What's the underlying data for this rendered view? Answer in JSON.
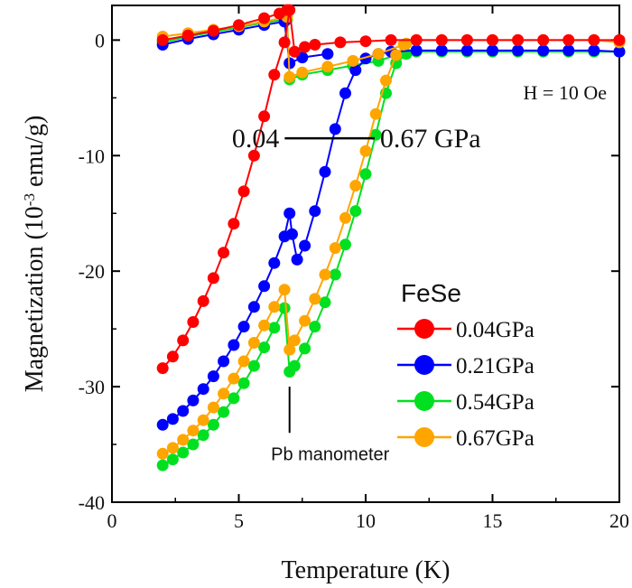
{
  "chart_data": {
    "type": "scatter",
    "title": "",
    "xlabel": "Temperature (K)",
    "ylabel_main": "Magnetization (10",
    "ylabel_sup": "-3",
    "ylabel_unit": " emu/g)",
    "xlim": [
      0,
      20
    ],
    "ylim": [
      -40,
      3
    ],
    "xticks": [
      0,
      5,
      10,
      15,
      20
    ],
    "xtick_labels": [
      "0",
      "5",
      "10",
      "15",
      "20"
    ],
    "yticks": [
      0,
      -10,
      -20,
      -30,
      -40
    ],
    "ytick_labels": [
      "0",
      "-10",
      "-20",
      "-30",
      "-40"
    ],
    "grid": false,
    "legend": {
      "title": "FeSe",
      "position": "lower-right"
    },
    "series": [
      {
        "name": "0.04GPa",
        "color": "#ff0000",
        "points": [
          [
            2,
            -28.4
          ],
          [
            2.4,
            -27.4
          ],
          [
            2.8,
            -26.0
          ],
          [
            3.2,
            -24.4
          ],
          [
            3.6,
            -22.6
          ],
          [
            4.0,
            -20.6
          ],
          [
            4.4,
            -18.4
          ],
          [
            4.8,
            -15.9
          ],
          [
            5.2,
            -13.1
          ],
          [
            5.6,
            -10.0
          ],
          [
            6.0,
            -6.6
          ],
          [
            6.4,
            -3.0
          ],
          [
            6.8,
            -0.2
          ],
          [
            7.0,
            2.6
          ],
          [
            7.2,
            -1.0
          ],
          [
            7.6,
            -0.6
          ],
          [
            8.0,
            -0.4
          ],
          [
            9.0,
            -0.2
          ],
          [
            10.0,
            -0.1
          ],
          [
            11.0,
            0.0
          ],
          [
            12.0,
            0.0
          ],
          [
            13.0,
            0.0
          ],
          [
            14.0,
            0.0
          ],
          [
            15.0,
            0.0
          ],
          [
            16.0,
            0.0
          ],
          [
            17.0,
            0.0
          ],
          [
            18.0,
            0.0
          ],
          [
            19.0,
            0.0
          ],
          [
            20.0,
            0.0
          ]
        ],
        "warming": [
          [
            2,
            0.0
          ],
          [
            3,
            0.4
          ],
          [
            4,
            0.8
          ],
          [
            5,
            1.3
          ],
          [
            6,
            1.9
          ],
          [
            6.6,
            2.3
          ],
          [
            6.9,
            2.6
          ]
        ]
      },
      {
        "name": "0.21GPa",
        "color": "#0000ff",
        "points": [
          [
            2,
            -33.3
          ],
          [
            2.4,
            -32.8
          ],
          [
            2.8,
            -32.1
          ],
          [
            3.2,
            -31.2
          ],
          [
            3.6,
            -30.2
          ],
          [
            4.0,
            -29.1
          ],
          [
            4.4,
            -27.8
          ],
          [
            4.8,
            -26.4
          ],
          [
            5.2,
            -24.8
          ],
          [
            5.6,
            -23.1
          ],
          [
            6.0,
            -21.3
          ],
          [
            6.4,
            -19.3
          ],
          [
            6.8,
            -17.0
          ],
          [
            7.0,
            -15.0
          ],
          [
            7.1,
            -16.8
          ],
          [
            7.3,
            -19.0
          ],
          [
            7.6,
            -17.8
          ],
          [
            8.0,
            -14.8
          ],
          [
            8.4,
            -11.4
          ],
          [
            8.8,
            -7.7
          ],
          [
            9.2,
            -4.6
          ],
          [
            9.6,
            -2.6
          ],
          [
            10.0,
            -1.6
          ],
          [
            10.5,
            -1.2
          ],
          [
            11.0,
            -1.0
          ],
          [
            12.0,
            -0.9
          ],
          [
            13.0,
            -0.9
          ],
          [
            14.0,
            -0.9
          ],
          [
            15.0,
            -0.9
          ],
          [
            16.0,
            -0.9
          ],
          [
            17.0,
            -0.9
          ],
          [
            18.0,
            -0.9
          ],
          [
            19.0,
            -0.9
          ],
          [
            20.0,
            -1.0
          ]
        ],
        "warming": [
          [
            2,
            -0.4
          ],
          [
            3,
            0.1
          ],
          [
            4,
            0.5
          ],
          [
            5,
            0.9
          ],
          [
            6,
            1.3
          ],
          [
            6.8,
            1.6
          ],
          [
            7.0,
            -2.0
          ],
          [
            7.5,
            -1.5
          ],
          [
            8.5,
            -1.2
          ]
        ]
      },
      {
        "name": "0.54GPa",
        "color": "#00e020",
        "points": [
          [
            2,
            -36.8
          ],
          [
            2.4,
            -36.3
          ],
          [
            2.8,
            -35.7
          ],
          [
            3.2,
            -35.0
          ],
          [
            3.6,
            -34.2
          ],
          [
            4.0,
            -33.3
          ],
          [
            4.4,
            -32.2
          ],
          [
            4.8,
            -31.0
          ],
          [
            5.2,
            -29.7
          ],
          [
            5.6,
            -28.2
          ],
          [
            6.0,
            -26.6
          ],
          [
            6.4,
            -24.9
          ],
          [
            6.8,
            -23.2
          ],
          [
            7.0,
            -28.7
          ],
          [
            7.2,
            -28.2
          ],
          [
            7.6,
            -26.7
          ],
          [
            8.0,
            -24.8
          ],
          [
            8.4,
            -22.7
          ],
          [
            8.8,
            -20.3
          ],
          [
            9.2,
            -17.7
          ],
          [
            9.6,
            -14.8
          ],
          [
            10.0,
            -11.6
          ],
          [
            10.4,
            -8.2
          ],
          [
            10.8,
            -4.6
          ],
          [
            11.2,
            -2.0
          ],
          [
            11.6,
            -1.2
          ],
          [
            12.0,
            -1.0
          ],
          [
            13.0,
            -1.0
          ],
          [
            14.0,
            -1.0
          ],
          [
            15.0,
            -1.0
          ],
          [
            16.0,
            -1.0
          ],
          [
            17.0,
            -1.0
          ],
          [
            18.0,
            -1.0
          ],
          [
            19.0,
            -1.0
          ],
          [
            20.0,
            -1.0
          ]
        ],
        "warming": [
          [
            2,
            -0.2
          ],
          [
            3,
            0.3
          ],
          [
            4,
            0.7
          ],
          [
            5,
            1.1
          ],
          [
            6,
            1.5
          ],
          [
            6.9,
            1.8
          ],
          [
            7.0,
            -3.4
          ],
          [
            7.5,
            -3.0
          ],
          [
            8.5,
            -2.6
          ],
          [
            9.5,
            -2.2
          ],
          [
            10.5,
            -1.8
          ],
          [
            11.2,
            -1.3
          ]
        ]
      },
      {
        "name": "0.67GPa",
        "color": "#ffa500",
        "points": [
          [
            2,
            -35.8
          ],
          [
            2.4,
            -35.3
          ],
          [
            2.8,
            -34.6
          ],
          [
            3.2,
            -33.8
          ],
          [
            3.6,
            -32.9
          ],
          [
            4.0,
            -31.8
          ],
          [
            4.4,
            -30.6
          ],
          [
            4.8,
            -29.3
          ],
          [
            5.2,
            -27.8
          ],
          [
            5.6,
            -26.2
          ],
          [
            6.0,
            -24.7
          ],
          [
            6.4,
            -23.1
          ],
          [
            6.8,
            -21.6
          ],
          [
            7.0,
            -26.8
          ],
          [
            7.2,
            -26.0
          ],
          [
            7.6,
            -24.3
          ],
          [
            8.0,
            -22.4
          ],
          [
            8.4,
            -20.3
          ],
          [
            8.8,
            -18.0
          ],
          [
            9.2,
            -15.4
          ],
          [
            9.6,
            -12.6
          ],
          [
            10.0,
            -9.6
          ],
          [
            10.4,
            -6.4
          ],
          [
            10.8,
            -3.5
          ],
          [
            11.2,
            -1.3
          ],
          [
            11.6,
            -0.3
          ],
          [
            12.0,
            0.0
          ],
          [
            13.0,
            0.0
          ],
          [
            14.0,
            0.0
          ],
          [
            15.0,
            0.0
          ],
          [
            16.0,
            0.0
          ],
          [
            17.0,
            0.0
          ],
          [
            18.0,
            0.0
          ],
          [
            19.0,
            0.0
          ],
          [
            20.0,
            -0.2
          ]
        ],
        "warming": [
          [
            2,
            0.3
          ],
          [
            3,
            0.6
          ],
          [
            4,
            0.9
          ],
          [
            5,
            1.2
          ],
          [
            6,
            1.6
          ],
          [
            6.9,
            2.0
          ],
          [
            7.0,
            -3.2
          ],
          [
            7.5,
            -2.8
          ],
          [
            8.5,
            -2.3
          ],
          [
            9.5,
            -1.8
          ],
          [
            10.5,
            -1.2
          ],
          [
            11.5,
            -0.4
          ]
        ]
      }
    ],
    "annotations": {
      "field": "H = 10 Oe",
      "pressure_low": "0.04",
      "pressure_high": "0.67 GPa",
      "pressure_line_y": -8.5,
      "pressure_line_x": [
        9.3,
        13.2
      ],
      "manometer": "Pb manometer",
      "manometer_x": 7.0,
      "manometer_y": [
        -30.0,
        -34.0
      ]
    }
  }
}
